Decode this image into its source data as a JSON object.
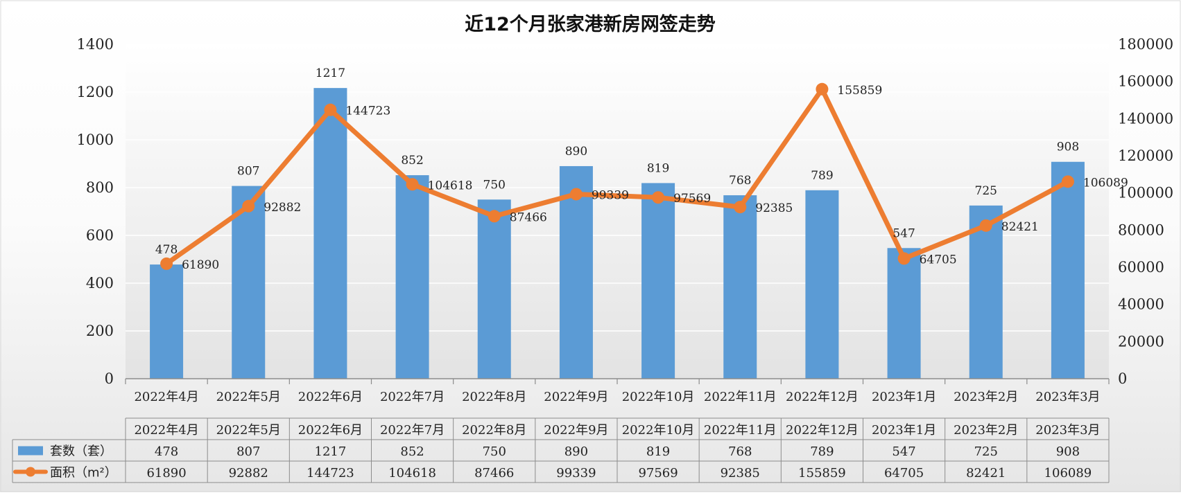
{
  "chart_data": {
    "type": "bar+line",
    "title": "近12个月张家港新房网签走势",
    "categories": [
      "2022年4月",
      "2022年5月",
      "2022年6月",
      "2022年7月",
      "2022年8月",
      "2022年9月",
      "2022年10月",
      "2022年11月",
      "2022年12月",
      "2023年1月",
      "2023年2月",
      "2023年3月"
    ],
    "series": [
      {
        "name": "套数（套）",
        "type": "bar",
        "axis": "left",
        "color": "#5b9bd5",
        "values": [
          478,
          807,
          1217,
          852,
          750,
          890,
          819,
          768,
          789,
          547,
          725,
          908
        ]
      },
      {
        "name": "面积（m²）",
        "type": "line",
        "axis": "right",
        "color": "#ed7d31",
        "values": [
          61890,
          92882,
          144723,
          104618,
          87466,
          99339,
          97569,
          92385,
          155859,
          64705,
          82421,
          106089
        ]
      }
    ],
    "y_left": {
      "min": 0,
      "max": 1400,
      "ticks": [
        "0",
        "200",
        "400",
        "600",
        "800",
        "1000",
        "1200",
        "1400"
      ]
    },
    "y_right": {
      "min": 0,
      "max": 180000,
      "ticks": [
        "0",
        "20000",
        "40000",
        "60000",
        "80000",
        "100000",
        "120000",
        "140000",
        "160000",
        "180000"
      ]
    },
    "grid": true,
    "data_table": true
  }
}
